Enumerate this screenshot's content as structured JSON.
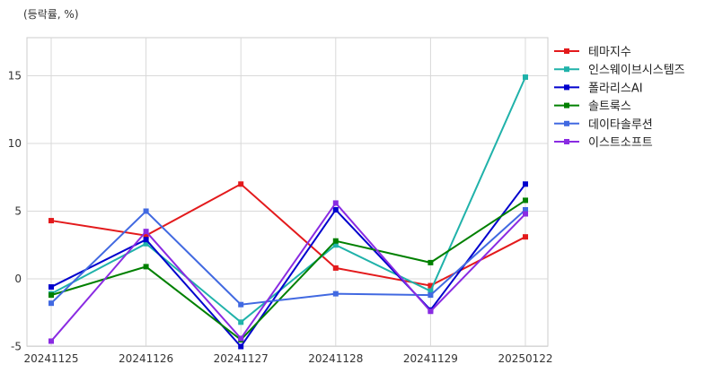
{
  "chart_data": {
    "type": "line",
    "unit_label": "(등락률, %)",
    "title": "",
    "xlabel": "",
    "ylabel": "",
    "categories": [
      "20241125",
      "20241126",
      "20241127",
      "20241128",
      "20241129",
      "20250122"
    ],
    "yticks": [
      -5,
      0,
      5,
      10,
      15
    ],
    "ylim": [
      -5,
      18
    ],
    "grid": true,
    "legend_position": "right",
    "series": [
      {
        "name": "테마지수",
        "color": "#e31a1c",
        "values": [
          4.3,
          3.2,
          7.0,
          0.8,
          -0.5,
          3.1
        ]
      },
      {
        "name": "인스웨이브시스템즈",
        "color": "#20b2aa",
        "values": [
          -1.1,
          2.6,
          -3.2,
          2.5,
          -0.9,
          14.9
        ]
      },
      {
        "name": "폴라리스AI",
        "color": "#0000cd",
        "values": [
          -0.6,
          2.9,
          -5.0,
          5.1,
          -2.3,
          7.0
        ]
      },
      {
        "name": "솔트룩스",
        "color": "#008000",
        "values": [
          -1.2,
          0.9,
          -4.5,
          2.8,
          1.2,
          5.8
        ]
      },
      {
        "name": "데이타솔루션",
        "color": "#4169e1",
        "values": [
          -1.8,
          5.0,
          -1.9,
          -1.1,
          -1.2,
          5.1
        ]
      },
      {
        "name": "이스트소프트",
        "color": "#8a2be2",
        "values": [
          -4.6,
          3.5,
          -4.4,
          5.6,
          -2.4,
          4.8
        ]
      }
    ]
  }
}
